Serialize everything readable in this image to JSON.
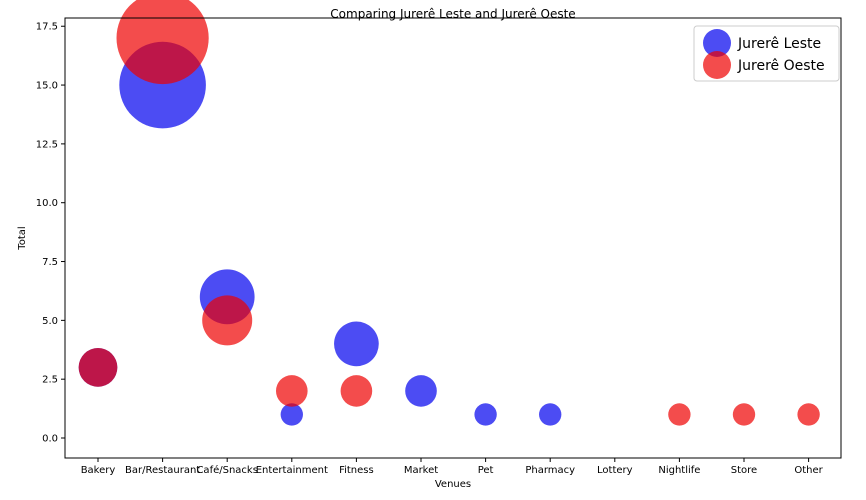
{
  "chart_data": {
    "type": "scatter",
    "title": "Comparing Jurerê Leste and Jurerê Oeste",
    "xlabel": "Venues",
    "ylabel": "Total",
    "categories": [
      "Bakery",
      "Bar/Restaurant",
      "Café/Snacks",
      "Entertainment",
      "Fitness",
      "Market",
      "Pet",
      "Pharmacy",
      "Lottery",
      "Nightlife",
      "Store",
      "Other"
    ],
    "ylim": [
      -0.85,
      17.85
    ],
    "yticks": [
      "0.0",
      "2.5",
      "5.0",
      "7.5",
      "10.0",
      "12.5",
      "15.0",
      "17.5"
    ],
    "legend_position": "upper right",
    "grid": false,
    "marker_size_encodes": "value",
    "series": [
      {
        "name": "Jurerê Leste",
        "color": "#0000ee",
        "values": [
          3,
          15,
          6,
          1,
          4,
          2,
          1,
          1,
          null,
          null,
          null,
          null
        ]
      },
      {
        "name": "Jurerê Oeste",
        "color": "#ee0000",
        "values": [
          3,
          17,
          5,
          2,
          2,
          null,
          null,
          null,
          null,
          1,
          1,
          1
        ]
      }
    ]
  }
}
